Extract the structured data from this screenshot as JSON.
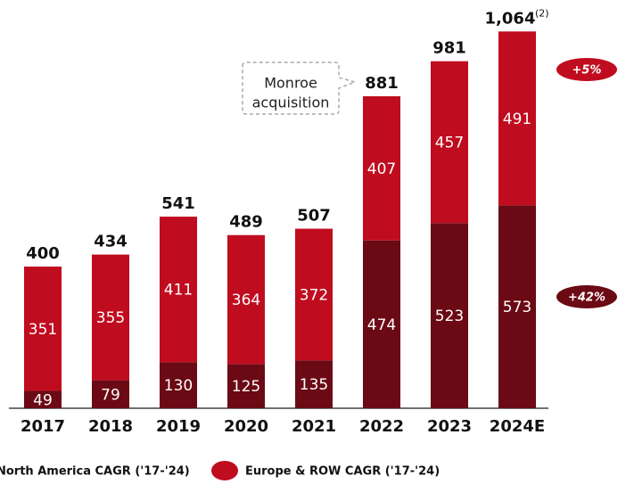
{
  "chart_data": {
    "type": "stacked_bar",
    "categories": [
      "2017",
      "2018",
      "2019",
      "2020",
      "2021",
      "2022",
      "2023",
      "2024E"
    ],
    "series": [
      {
        "name": "North America CAGR ('17-'24)",
        "color": "#6b0a14",
        "values": [
          49,
          79,
          130,
          125,
          135,
          474,
          523,
          573
        ]
      },
      {
        "name": "Europe & ROW CAGR ('17-'24)",
        "color": "#c00c1f",
        "values": [
          351,
          355,
          411,
          364,
          372,
          407,
          457,
          491
        ]
      }
    ],
    "totals": [
      400,
      434,
      541,
      489,
      507,
      881,
      981,
      1064
    ],
    "total_labels": [
      "400",
      "434",
      "541",
      "489",
      "507",
      "881",
      "981",
      "1,064"
    ],
    "total_footnote": "(2)",
    "callout": [
      "Monroe",
      "acquisition"
    ],
    "badges": [
      "+42%",
      "+5%"
    ],
    "ylim": [
      0,
      1100
    ]
  }
}
